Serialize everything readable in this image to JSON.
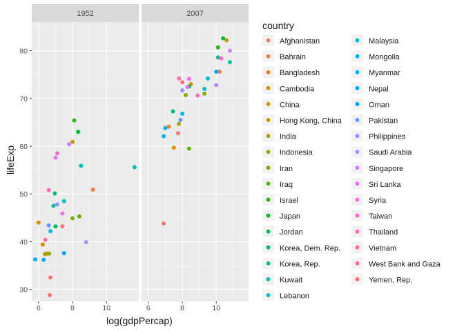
{
  "chart_data": {
    "type": "scatter",
    "xlabel": "log(gdpPercap)",
    "ylabel": "lifeExp",
    "xlim": [
      5.6,
      11.9
    ],
    "ylim": [
      27.5,
      86
    ],
    "x_ticks": [
      6,
      8,
      10
    ],
    "y_ticks": [
      30,
      40,
      50,
      60,
      70,
      80
    ],
    "grid": true,
    "legend_title": "country",
    "legend_placement": "right",
    "facets": [
      {
        "label": "1952",
        "points": [
          {
            "country": "Afghanistan",
            "x": 6.66,
            "y": 28.8
          },
          {
            "country": "Bahrain",
            "x": 9.2,
            "y": 50.9
          },
          {
            "country": "Bangladesh",
            "x": 6.49,
            "y": 37.5
          },
          {
            "country": "Cambodia",
            "x": 6.25,
            "y": 39.4
          },
          {
            "country": "China",
            "x": 6.0,
            "y": 44.0
          },
          {
            "country": "Hong Kong, China",
            "x": 8.0,
            "y": 60.9
          },
          {
            "country": "India",
            "x": 6.38,
            "y": 37.4
          },
          {
            "country": "Indonesia",
            "x": 6.62,
            "y": 37.5
          },
          {
            "country": "Iran",
            "x": 8.0,
            "y": 44.9
          },
          {
            "country": "Iraq",
            "x": 8.4,
            "y": 45.3
          },
          {
            "country": "Israel",
            "x": 8.1,
            "y": 65.4
          },
          {
            "country": "Japan",
            "x": 8.33,
            "y": 63.0
          },
          {
            "country": "Jordan",
            "x": 7.0,
            "y": 43.2
          },
          {
            "country": "Korea, Dem. Rep.",
            "x": 6.96,
            "y": 50.1
          },
          {
            "country": "Korea, Rep.",
            "x": 6.88,
            "y": 47.5
          },
          {
            "country": "Kuwait",
            "x": 11.65,
            "y": 55.6
          },
          {
            "country": "Lebanon",
            "x": 8.5,
            "y": 55.9
          },
          {
            "country": "Malaysia",
            "x": 7.5,
            "y": 48.5
          },
          {
            "country": "Mongolia",
            "x": 6.7,
            "y": 42.2
          },
          {
            "country": "Myanmar",
            "x": 5.8,
            "y": 36.3
          },
          {
            "country": "Nepal",
            "x": 6.3,
            "y": 36.2
          },
          {
            "country": "Oman",
            "x": 7.5,
            "y": 37.6
          },
          {
            "country": "Pakistan",
            "x": 6.6,
            "y": 43.4
          },
          {
            "country": "Philippines",
            "x": 7.1,
            "y": 47.8
          },
          {
            "country": "Saudi Arabia",
            "x": 8.8,
            "y": 39.9
          },
          {
            "country": "Singapore",
            "x": 7.8,
            "y": 60.4
          },
          {
            "country": "Sri Lanka",
            "x": 7.0,
            "y": 57.6
          },
          {
            "country": "Syria",
            "x": 7.4,
            "y": 45.9
          },
          {
            "country": "Taiwan",
            "x": 7.1,
            "y": 58.5
          },
          {
            "country": "Thailand",
            "x": 6.6,
            "y": 50.8
          },
          {
            "country": "Vietnam",
            "x": 6.4,
            "y": 40.4
          },
          {
            "country": "West Bank and Gaza",
            "x": 7.4,
            "y": 43.2
          },
          {
            "country": "Yemen, Rep.",
            "x": 6.7,
            "y": 32.5
          }
        ]
      },
      {
        "label": "2007",
        "points": [
          {
            "country": "Afghanistan",
            "x": 6.9,
            "y": 43.8
          },
          {
            "country": "Bahrain",
            "x": 10.2,
            "y": 75.6
          },
          {
            "country": "Bangladesh",
            "x": 7.2,
            "y": 64.1
          },
          {
            "country": "Cambodia",
            "x": 7.5,
            "y": 59.7
          },
          {
            "country": "China",
            "x": 8.5,
            "y": 73.0
          },
          {
            "country": "Hong Kong, China",
            "x": 10.6,
            "y": 82.2
          },
          {
            "country": "India",
            "x": 7.8,
            "y": 64.7
          },
          {
            "country": "Indonesia",
            "x": 8.2,
            "y": 70.7
          },
          {
            "country": "Iran",
            "x": 9.3,
            "y": 71.0
          },
          {
            "country": "Iraq",
            "x": 8.4,
            "y": 59.5
          },
          {
            "country": "Israel",
            "x": 10.1,
            "y": 80.7
          },
          {
            "country": "Japan",
            "x": 10.4,
            "y": 82.6
          },
          {
            "country": "Jordan",
            "x": 8.4,
            "y": 72.5
          },
          {
            "country": "Korea, Dem. Rep.",
            "x": 7.45,
            "y": 67.3
          },
          {
            "country": "Korea, Rep.",
            "x": 10.1,
            "y": 78.6
          },
          {
            "country": "Kuwait",
            "x": 10.8,
            "y": 77.6
          },
          {
            "country": "Lebanon",
            "x": 9.3,
            "y": 72.0
          },
          {
            "country": "Malaysia",
            "x": 9.5,
            "y": 74.2
          },
          {
            "country": "Mongolia",
            "x": 8.0,
            "y": 66.8
          },
          {
            "country": "Myanmar",
            "x": 6.9,
            "y": 62.1
          },
          {
            "country": "Nepal",
            "x": 7.0,
            "y": 63.8
          },
          {
            "country": "Oman",
            "x": 10.0,
            "y": 75.6
          },
          {
            "country": "Pakistan",
            "x": 7.9,
            "y": 65.5
          },
          {
            "country": "Philippines",
            "x": 8.0,
            "y": 71.7
          },
          {
            "country": "Saudi Arabia",
            "x": 10.0,
            "y": 72.8
          },
          {
            "country": "Singapore",
            "x": 10.8,
            "y": 80.0
          },
          {
            "country": "Sri Lanka",
            "x": 8.3,
            "y": 72.4
          },
          {
            "country": "Syria",
            "x": 8.4,
            "y": 74.1
          },
          {
            "country": "Taiwan",
            "x": 10.3,
            "y": 78.4
          },
          {
            "country": "Thailand",
            "x": 8.9,
            "y": 70.6
          },
          {
            "country": "Vietnam",
            "x": 7.8,
            "y": 74.2
          },
          {
            "country": "West Bank and Gaza",
            "x": 8.0,
            "y": 73.4
          },
          {
            "country": "Yemen, Rep.",
            "x": 7.75,
            "y": 62.7
          }
        ]
      }
    ],
    "legend_columns": [
      [
        {
          "name": "Afghanistan",
          "color": "#F8766D"
        },
        {
          "name": "Bahrain",
          "color": "#F07E4B"
        },
        {
          "name": "Bangladesh",
          "color": "#E6861C"
        },
        {
          "name": "Cambodia",
          "color": "#D98E00"
        },
        {
          "name": "China",
          "color": "#CC9600"
        },
        {
          "name": "Hong Kong, China",
          "color": "#BC9D00"
        },
        {
          "name": "India",
          "color": "#AAA300"
        },
        {
          "name": "Indonesia",
          "color": "#96A900"
        },
        {
          "name": "Iran",
          "color": "#7EAE00"
        },
        {
          "name": "Iraq",
          "color": "#60B200"
        },
        {
          "name": "Israel",
          "color": "#30B600"
        },
        {
          "name": "Japan",
          "color": "#00B931"
        },
        {
          "name": "Jordan",
          "color": "#00BB58"
        },
        {
          "name": "Korea, Dem. Rep.",
          "color": "#00BD76"
        },
        {
          "name": "Korea, Rep.",
          "color": "#00BE90"
        },
        {
          "name": "Kuwait",
          "color": "#00BFA8"
        },
        {
          "name": "Lebanon",
          "color": "#00BEBE"
        }
      ],
      [
        {
          "name": "Malaysia",
          "color": "#00BCD3"
        },
        {
          "name": "Mongolia",
          "color": "#00B8E5"
        },
        {
          "name": "Myanmar",
          "color": "#00B3F4"
        },
        {
          "name": "Nepal",
          "color": "#00ACFC"
        },
        {
          "name": "Oman",
          "color": "#00A4FF"
        },
        {
          "name": "Pakistan",
          "color": "#5D9CFF"
        },
        {
          "name": "Philippines",
          "color": "#9093FF"
        },
        {
          "name": "Saudi Arabia",
          "color": "#B38AFF"
        },
        {
          "name": "Singapore",
          "color": "#CC80FF"
        },
        {
          "name": "Sri Lanka",
          "color": "#E076F5"
        },
        {
          "name": "Syria",
          "color": "#EF6FE5"
        },
        {
          "name": "Taiwan",
          "color": "#FA6AD2"
        },
        {
          "name": "Thailand",
          "color": "#FE6BBC"
        },
        {
          "name": "Vietnam",
          "color": "#FF6DA4"
        },
        {
          "name": "West Bank and Gaza",
          "color": "#FF6E89"
        },
        {
          "name": "Yemen, Rep.",
          "color": "#FB726D"
        }
      ]
    ],
    "colors": {
      "panel_bg": "#EBEBEB",
      "strip_bg": "#D9D9D9",
      "grid_major": "#FFFFFF",
      "grid_minor": "#F5F5F5",
      "text": "#1A1A1A",
      "tick_text": "#4D4D4D"
    }
  }
}
